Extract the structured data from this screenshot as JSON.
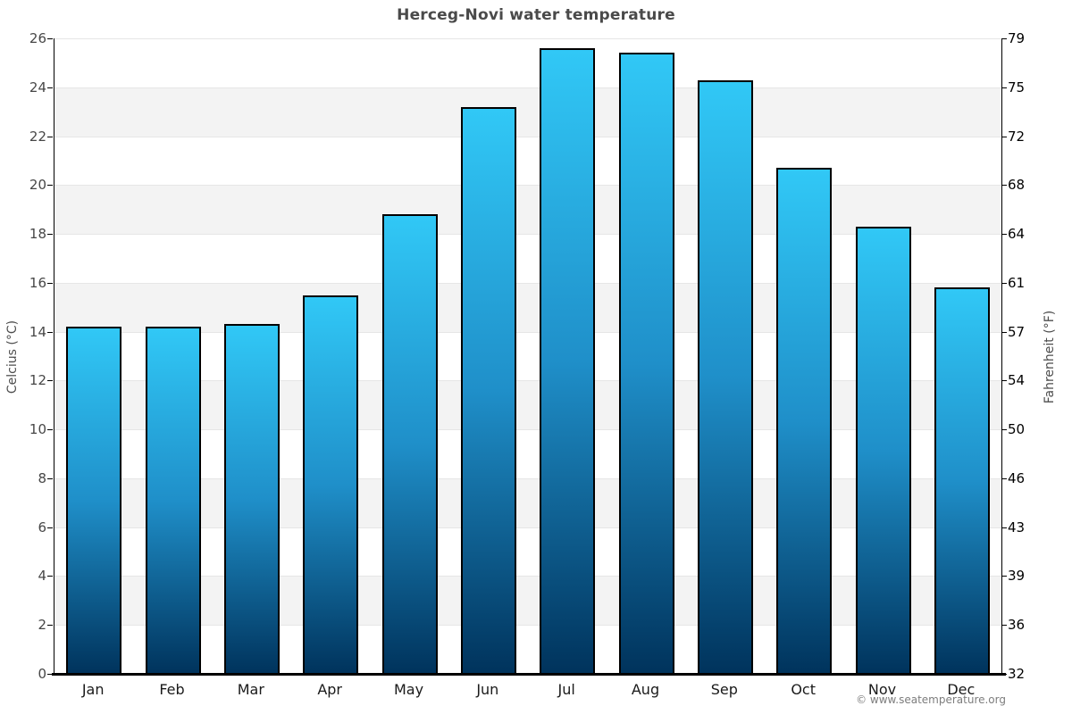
{
  "page": {
    "footer": "© www.seatemperature.org"
  },
  "chart_data": {
    "type": "bar",
    "title": "Herceg-Novi water temperature",
    "categories": [
      "Jan",
      "Feb",
      "Mar",
      "Apr",
      "May",
      "Jun",
      "Jul",
      "Aug",
      "Sep",
      "Oct",
      "Nov",
      "Dec"
    ],
    "values": [
      14.2,
      14.2,
      14.3,
      15.5,
      18.8,
      23.2,
      25.6,
      25.4,
      24.3,
      20.7,
      18.3,
      15.8
    ],
    "value_unit": "°C",
    "ylabel_left": "Celcius (°C)",
    "ylabel_right": "Fahrenheit (°F)",
    "ylim": [
      0,
      26
    ],
    "yticks_celsius": [
      0,
      2,
      4,
      6,
      8,
      10,
      12,
      14,
      16,
      18,
      20,
      22,
      24,
      26
    ],
    "yticks_fahrenheit": [
      "32",
      "36",
      "39",
      "43",
      "46",
      "50",
      "54",
      "57",
      "61",
      "64",
      "68",
      "72",
      "75",
      "79"
    ],
    "legend": "none",
    "grid": "alternating horizontal bands every 2°C",
    "colors": {
      "bar_gradient_top": "#31c8f6",
      "bar_gradient_mid": "#1f8fc9",
      "bar_gradient_bottom": "#00335c",
      "bar_border": "#000000",
      "band_shade": "#f3f3f3",
      "gridline": "#e6e6e6",
      "axis": "#000000",
      "title_text": "#4a4a4a"
    }
  }
}
